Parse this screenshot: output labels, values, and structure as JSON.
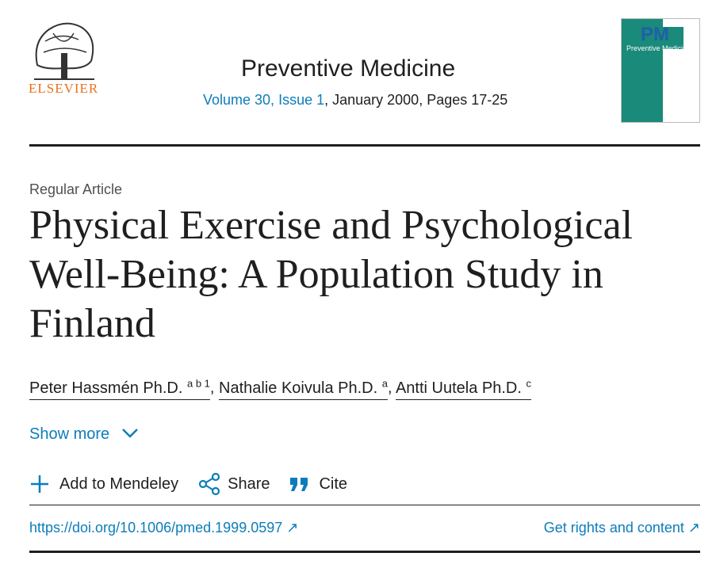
{
  "header": {
    "publisher": "ELSEVIER",
    "journal": "Preventive Medicine",
    "volume_issue": "Volume 30, Issue 1",
    "details": ", January 2000, Pages 17-25",
    "cover": {
      "logo": "PM",
      "name": "Preventive Medicine"
    }
  },
  "article": {
    "type": "Regular Article",
    "title": "Physical Exercise and Psychological Well-Being: A Population Study in Finland",
    "authors": {
      "separator": ",",
      "list": [
        {
          "name": "Peter Hassmén Ph.D.",
          "affiliations": "a b 1"
        },
        {
          "name": "Nathalie Koivula Ph.D.",
          "affiliations": "a"
        },
        {
          "name": "Antti Uutela Ph.D.",
          "affiliations": "c"
        }
      ]
    },
    "show_more": "Show more"
  },
  "actions": {
    "mendeley": "Add to Mendeley",
    "share": "Share",
    "cite": "Cite"
  },
  "links": {
    "doi": "https://doi.org/10.1006/pmed.1999.0597",
    "rights": "Get rights and content"
  }
}
